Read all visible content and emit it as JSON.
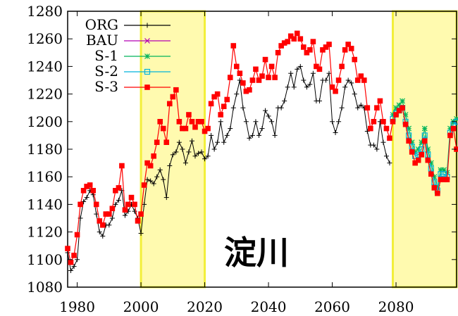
{
  "chart_data": {
    "type": "line",
    "title": "淀川",
    "xlabel": "",
    "ylabel": "",
    "xlim": [
      1977,
      2099
    ],
    "ylim": [
      1080,
      1280
    ],
    "xticks": [
      1980,
      2000,
      2020,
      2040,
      2060,
      2080
    ],
    "yticks": [
      1080,
      1100,
      1120,
      1140,
      1160,
      1180,
      1200,
      1220,
      1240,
      1260,
      1280
    ],
    "grid": false,
    "legend_position": "top-left",
    "highlight_bands": [
      {
        "x0": 2000,
        "x1": 2020,
        "color": "#fffaaf",
        "border": "#f2ef3a"
      },
      {
        "x0": 2079,
        "x1": 2099,
        "color": "#fffaaf",
        "border": "#f2ef3a"
      }
    ],
    "series": [
      {
        "name": "ORG",
        "color": "#000000",
        "marker": "plus",
        "x": [
          1977,
          1978,
          1979,
          1980,
          1981,
          1982,
          1983,
          1984,
          1985,
          1986,
          1987,
          1988,
          1989,
          1990,
          1991,
          1992,
          1993,
          1994,
          1995,
          1996,
          1997,
          1998,
          1999,
          2000,
          2001,
          2002,
          2003,
          2004,
          2005,
          2006,
          2007,
          2008,
          2009,
          2010,
          2011,
          2012,
          2013,
          2014,
          2015,
          2016,
          2017,
          2018,
          2019,
          2020,
          2021,
          2022,
          2023,
          2024,
          2025,
          2026,
          2027,
          2028,
          2029,
          2030,
          2031,
          2032,
          2033,
          2034,
          2035,
          2036,
          2037,
          2038,
          2039,
          2040,
          2041,
          2042,
          2043,
          2044,
          2045,
          2046,
          2047,
          2048,
          2049,
          2050,
          2051,
          2052,
          2053,
          2054,
          2055,
          2056,
          2057,
          2058,
          2059,
          2060,
          2061,
          2062,
          2063,
          2064,
          2065,
          2066,
          2067,
          2068,
          2069,
          2070,
          2071,
          2072,
          2073,
          2074,
          2075,
          2076,
          2077,
          2078
        ],
        "values": [
          1105,
          1092,
          1095,
          1100,
          1130,
          1142,
          1145,
          1150,
          1147,
          1133,
          1120,
          1117,
          1125,
          1125,
          1130,
          1140,
          1143,
          1150,
          1132,
          1135,
          1140,
          1135,
          1130,
          1119,
          1140,
          1158,
          1157,
          1155,
          1160,
          1165,
          1158,
          1145,
          1168,
          1176,
          1178,
          1185,
          1180,
          1170,
          1178,
          1186,
          1175,
          1177,
          1178,
          1173,
          1175,
          1190,
          1180,
          1185,
          1200,
          1185,
          1190,
          1195,
          1210,
          1220,
          1230,
          1210,
          1200,
          1188,
          1190,
          1200,
          1190,
          1195,
          1208,
          1204,
          1200,
          1190,
          1210,
          1210,
          1215,
          1225,
          1235,
          1225,
          1238,
          1240,
          1230,
          1225,
          1227,
          1235,
          1215,
          1215,
          1230,
          1230,
          1235,
          1200,
          1192,
          1200,
          1210,
          1225,
          1230,
          1228,
          1220,
          1210,
          1212,
          1210,
          1193,
          1183,
          1183,
          1180,
          1200,
          1185,
          1175,
          1170
        ]
      },
      {
        "name": "BAU",
        "color": "#b400b4",
        "marker": "cross",
        "x": [],
        "values": []
      },
      {
        "name": "S-1",
        "color": "#00b45a",
        "marker": "star",
        "x": [
          2079,
          2080,
          2081,
          2082,
          2083,
          2084,
          2085,
          2086,
          2087,
          2088,
          2089,
          2090,
          2091,
          2092,
          2093,
          2094,
          2095,
          2096,
          2097,
          2098,
          2099
        ],
        "values": [
          1205,
          1210,
          1212,
          1215,
          1205,
          1195,
          1185,
          1178,
          1180,
          1185,
          1195,
          1180,
          1170,
          1160,
          1152,
          1165,
          1165,
          1163,
          1195,
          1200,
          1202
        ]
      },
      {
        "name": "S-2",
        "color": "#00b4dc",
        "marker": "square-open",
        "x": [
          2079,
          2080,
          2081,
          2082,
          2083,
          2084,
          2085,
          2086,
          2087,
          2088,
          2089,
          2090,
          2091,
          2092,
          2093,
          2094,
          2095,
          2096,
          2097,
          2098,
          2099
        ],
        "values": [
          1202,
          1206,
          1208,
          1210,
          1200,
          1190,
          1182,
          1175,
          1176,
          1180,
          1190,
          1176,
          1166,
          1156,
          1150,
          1162,
          1162,
          1160,
          1192,
          1198,
          1200
        ]
      },
      {
        "name": "S-3",
        "color": "#ff0000",
        "marker": "square-filled",
        "x": [
          1977,
          1978,
          1979,
          1980,
          1981,
          1982,
          1983,
          1984,
          1985,
          1986,
          1987,
          1988,
          1989,
          1990,
          1991,
          1992,
          1993,
          1994,
          1995,
          1996,
          1997,
          1998,
          1999,
          2000,
          2001,
          2002,
          2003,
          2004,
          2005,
          2006,
          2007,
          2008,
          2009,
          2010,
          2011,
          2012,
          2013,
          2014,
          2015,
          2016,
          2017,
          2018,
          2019,
          2020,
          2021,
          2022,
          2023,
          2024,
          2025,
          2026,
          2027,
          2028,
          2029,
          2030,
          2031,
          2032,
          2033,
          2034,
          2035,
          2036,
          2037,
          2038,
          2039,
          2040,
          2041,
          2042,
          2043,
          2044,
          2045,
          2046,
          2047,
          2048,
          2049,
          2050,
          2051,
          2052,
          2053,
          2054,
          2055,
          2056,
          2057,
          2058,
          2059,
          2060,
          2061,
          2062,
          2063,
          2064,
          2065,
          2066,
          2067,
          2068,
          2069,
          2070,
          2071,
          2072,
          2073,
          2074,
          2075,
          2076,
          2077,
          2078,
          2079,
          2080,
          2081,
          2082,
          2083,
          2084,
          2085,
          2086,
          2087,
          2088,
          2089,
          2090,
          2091,
          2092,
          2093,
          2094,
          2095,
          2096,
          2097,
          2098,
          2099
        ],
        "values": [
          1108,
          1098,
          1103,
          1118,
          1140,
          1150,
          1153,
          1154,
          1150,
          1140,
          1128,
          1125,
          1133,
          1133,
          1137,
          1150,
          1152,
          1168,
          1136,
          1140,
          1145,
          1140,
          1128,
          1133,
          1154,
          1170,
          1168,
          1175,
          1185,
          1200,
          1195,
          1185,
          1213,
          1218,
          1223,
          1200,
          1195,
          1195,
          1205,
          1200,
          1196,
          1200,
          1200,
          1193,
          1195,
          1213,
          1218,
          1220,
          1205,
          1211,
          1216,
          1232,
          1255,
          1240,
          1235,
          1228,
          1222,
          1223,
          1230,
          1238,
          1230,
          1233,
          1245,
          1232,
          1240,
          1232,
          1250,
          1255,
          1257,
          1258,
          1262,
          1260,
          1264,
          1260,
          1254,
          1250,
          1252,
          1258,
          1240,
          1238,
          1252,
          1254,
          1256,
          1225,
          1222,
          1230,
          1240,
          1252,
          1256,
          1253,
          1245,
          1230,
          1233,
          1230,
          1210,
          1195,
          1200,
          1210,
          1215,
          1200,
          1195,
          1188,
          1200,
          1205,
          1208,
          1210,
          1198,
          1186,
          1178,
          1170,
          1172,
          1176,
          1186,
          1172,
          1162,
          1152,
          1148,
          1158,
          1158,
          1158,
          1190,
          1195,
          1180
        ]
      }
    ]
  }
}
